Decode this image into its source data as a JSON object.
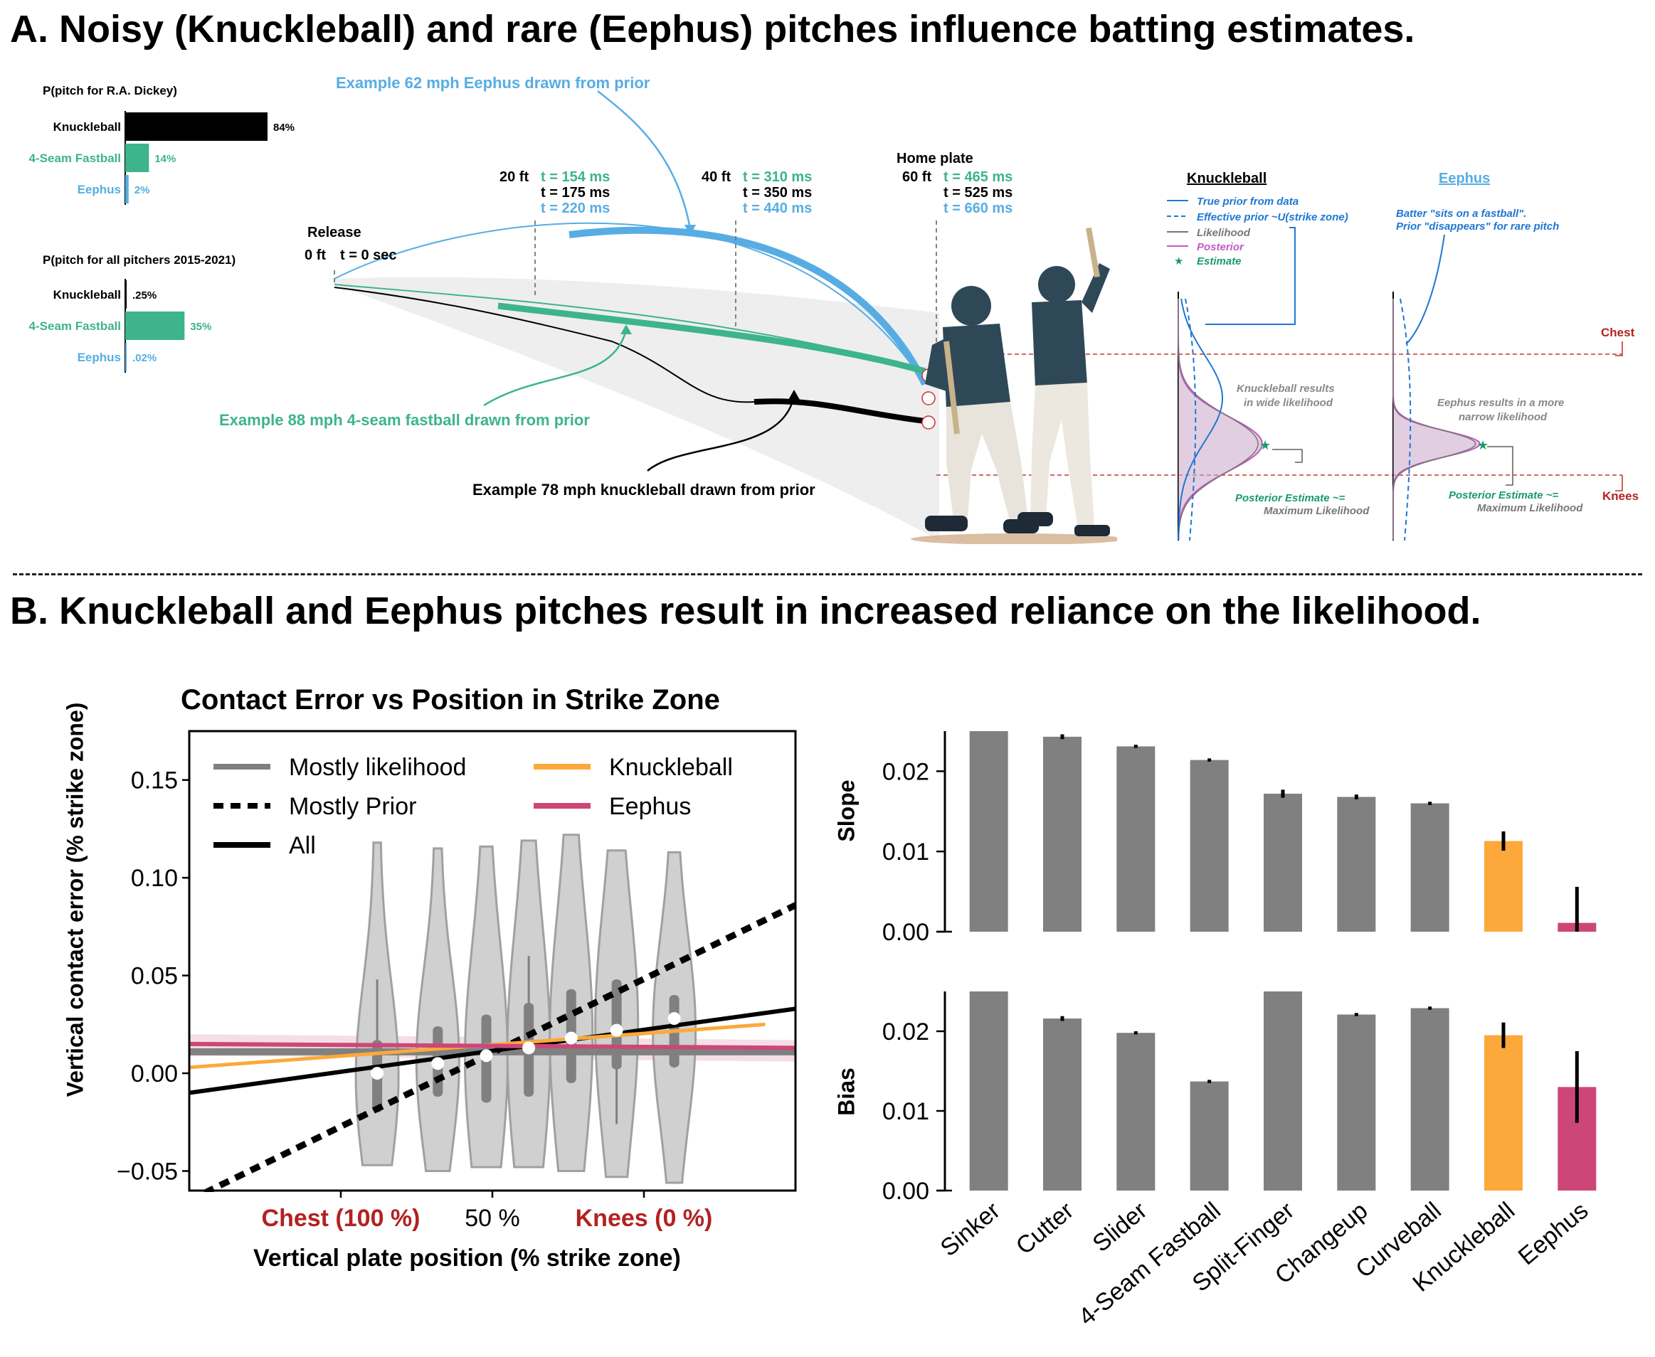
{
  "panelA": {
    "title": "A. Noisy (Knuckleball) and rare (Eephus) pitches influence batting estimates.",
    "dickey": {
      "title": "P(pitch for R.A. Dickey)",
      "bars": [
        {
          "label": "Knuckleball",
          "value": 84,
          "text": "84%",
          "color": "#000000"
        },
        {
          "label": "4-Seam Fastball",
          "value": 14,
          "text": "14%",
          "color": "#3db48c"
        },
        {
          "label": "Eephus",
          "value": 2,
          "text": "2%",
          "color": "#57ade3"
        }
      ]
    },
    "allPitchers": {
      "title": "P(pitch for all pitchers 2015-2021)",
      "bars": [
        {
          "label": "Knuckleball",
          "value": 0.25,
          "text": ".25%",
          "color": "#000000"
        },
        {
          "label": "4-Seam Fastball",
          "value": 35,
          "text": "35%",
          "color": "#3db48c"
        },
        {
          "label": "Eephus",
          "value": 0.02,
          "text": ".02%",
          "color": "#57ade3"
        }
      ]
    },
    "release": {
      "label": "Release",
      "ft": "0 ft",
      "t": "t = 0 sec"
    },
    "markers": [
      {
        "ft": "20 ft",
        "fastball": "t = 154 ms",
        "knuckle": "t = 175 ms",
        "eephus": "t = 220 ms"
      },
      {
        "ft": "40 ft",
        "fastball": "t = 310 ms",
        "knuckle": "t = 350 ms",
        "eephus": "t = 440 ms"
      },
      {
        "ft": "60 ft",
        "fastball": "t = 465 ms",
        "knuckle": "t = 525 ms",
        "eephus": "t = 660 ms",
        "title": "Home plate"
      }
    ],
    "examples": {
      "eephus": "Example 62 mph Eephus drawn from prior",
      "fastball": "Example 88 mph 4-seam fastball drawn from prior",
      "knuckle": "Example 78 mph knuckleball drawn from prior"
    },
    "knucklePanel": {
      "title": "Knuckleball",
      "legend": [
        {
          "text": "True prior from data",
          "color": "#1f77d4",
          "style": "solid"
        },
        {
          "text": "Effective prior ~U(strike zone)",
          "color": "#1f77d4",
          "style": "dashed"
        },
        {
          "text": "Likelihood",
          "color": "#777777",
          "style": "solid"
        },
        {
          "text": "Posterior",
          "color": "#c25bc2",
          "style": "solid"
        },
        {
          "text": "Estimate",
          "color": "#1a9a6a",
          "style": "star"
        }
      ],
      "note1": "Knuckleball results",
      "note2": "in wide likelihood",
      "est1": "Posterior Estimate ~=",
      "est2": "Maximum Likelihood"
    },
    "eephusPanel": {
      "title": "Eephus",
      "note_top1": "Batter \"sits on a fastball\".",
      "note_top2": "Prior \"disappears\" for rare pitch",
      "note1": "Eephus results in a more",
      "note2": "narrow likelihood",
      "est1": "Posterior Estimate ~=",
      "est2": "Maximum Likelihood"
    },
    "chest": "Chest",
    "knees": "Knees"
  },
  "panelB": {
    "title": "B. Knuckleball and Eephus pitches result in increased reliance on the likelihood.",
    "colors": {
      "gray": "#808080",
      "orange": "#fda83a",
      "pink": "#cc4777"
    }
  },
  "chart_data": [
    {
      "type": "line",
      "title": "Contact Error vs Position in Strike Zone",
      "xlabel": "Vertical plate position (% strike zone)",
      "ylabel": "Vertical contact error (% strike zone)",
      "ylim": [
        -0.06,
        0.175
      ],
      "yticks": [
        -0.05,
        0.0,
        0.05,
        0.1,
        0.15
      ],
      "xlim": [
        0,
        1
      ],
      "xtick_labels": [
        {
          "x": 0.25,
          "text": "Chest (100 %)",
          "color": "#b22222"
        },
        {
          "x": 0.5,
          "text": "50 %",
          "color": "#000000"
        },
        {
          "x": 0.75,
          "text": "Knees (0 %)",
          "color": "#b22222"
        }
      ],
      "legend": "top-left",
      "series": [
        {
          "name": "Mostly likelihood",
          "color": "#808080",
          "style": "solid",
          "x": [
            0,
            1
          ],
          "y": [
            0.011,
            0.011
          ]
        },
        {
          "name": "Mostly Prior",
          "color": "#000000",
          "style": "dotted",
          "x": [
            0,
            1
          ],
          "y": [
            -0.065,
            0.086
          ]
        },
        {
          "name": "All",
          "color": "#000000",
          "style": "solid",
          "x": [
            0,
            1
          ],
          "y": [
            -0.01,
            0.033
          ]
        },
        {
          "name": "Knuckleball",
          "color": "#fda83a",
          "style": "solid",
          "x": [
            0,
            0.95
          ],
          "y": [
            0.003,
            0.025
          ]
        },
        {
          "name": "Eephus",
          "color": "#cc4777",
          "style": "solid",
          "x": [
            0,
            1
          ],
          "y": [
            0.015,
            0.013
          ]
        }
      ],
      "violins": [
        {
          "x": 0.31,
          "median": 0.0,
          "q1": -0.02,
          "q3": 0.017,
          "min": -0.047,
          "max": 0.118,
          "wmin": -0.02,
          "wmax": 0.048
        },
        {
          "x": 0.41,
          "median": 0.005,
          "q1": -0.012,
          "q3": 0.024,
          "min": -0.05,
          "max": 0.115,
          "wmin": -0.012,
          "wmax": 0.024
        },
        {
          "x": 0.49,
          "median": 0.009,
          "q1": -0.015,
          "q3": 0.03,
          "min": -0.048,
          "max": 0.116,
          "wmin": -0.015,
          "wmax": 0.03
        },
        {
          "x": 0.56,
          "median": 0.013,
          "q1": -0.012,
          "q3": 0.036,
          "min": -0.048,
          "max": 0.119,
          "wmin": -0.012,
          "wmax": 0.06
        },
        {
          "x": 0.63,
          "median": 0.018,
          "q1": -0.005,
          "q3": 0.043,
          "min": -0.05,
          "max": 0.122,
          "wmin": -0.005,
          "wmax": 0.043
        },
        {
          "x": 0.705,
          "median": 0.022,
          "q1": 0.002,
          "q3": 0.048,
          "min": -0.053,
          "max": 0.114,
          "wmin": -0.026,
          "wmax": 0.048
        },
        {
          "x": 0.8,
          "median": 0.028,
          "q1": 0.003,
          "q3": 0.04,
          "min": -0.056,
          "max": 0.113,
          "wmin": 0.003,
          "wmax": 0.04
        }
      ]
    },
    {
      "type": "bar",
      "ylabel": "Slope",
      "ylim": [
        0,
        0.025
      ],
      "yticks": [
        0.0,
        0.01,
        0.02
      ],
      "categories": [
        "Sinker",
        "Cutter",
        "Slider",
        "4-Seam Fastball",
        "Split-Finger",
        "Changeup",
        "Curveball",
        "Knuckleball",
        "Eephus"
      ],
      "values": [
        0.025,
        0.0243,
        0.0231,
        0.0214,
        0.0172,
        0.0168,
        0.016,
        0.0113,
        0.0011
      ],
      "errors": [
        0.0,
        0.0003,
        0.0002,
        0.0002,
        0.0005,
        0.0003,
        0.0002,
        0.0012,
        0.0045
      ],
      "colors": [
        "#808080",
        "#808080",
        "#808080",
        "#808080",
        "#808080",
        "#808080",
        "#808080",
        "#fda83a",
        "#cc4777"
      ]
    },
    {
      "type": "bar",
      "ylabel": "Bias",
      "ylim": [
        0,
        0.025
      ],
      "yticks": [
        0.0,
        0.01,
        0.02
      ],
      "categories": [
        "Sinker",
        "Cutter",
        "Slider",
        "4-Seam Fastball",
        "Split-Finger",
        "Changeup",
        "Curveball",
        "Knuckleball",
        "Eephus"
      ],
      "values": [
        0.025,
        0.0216,
        0.0198,
        0.0137,
        0.025,
        0.0221,
        0.0229,
        0.0195,
        0.013
      ],
      "errors": [
        0.0,
        0.0003,
        0.0002,
        0.0002,
        0.0,
        0.0002,
        0.0002,
        0.0016,
        0.0045
      ],
      "colors": [
        "#808080",
        "#808080",
        "#808080",
        "#808080",
        "#808080",
        "#808080",
        "#808080",
        "#fda83a",
        "#cc4777"
      ]
    }
  ]
}
